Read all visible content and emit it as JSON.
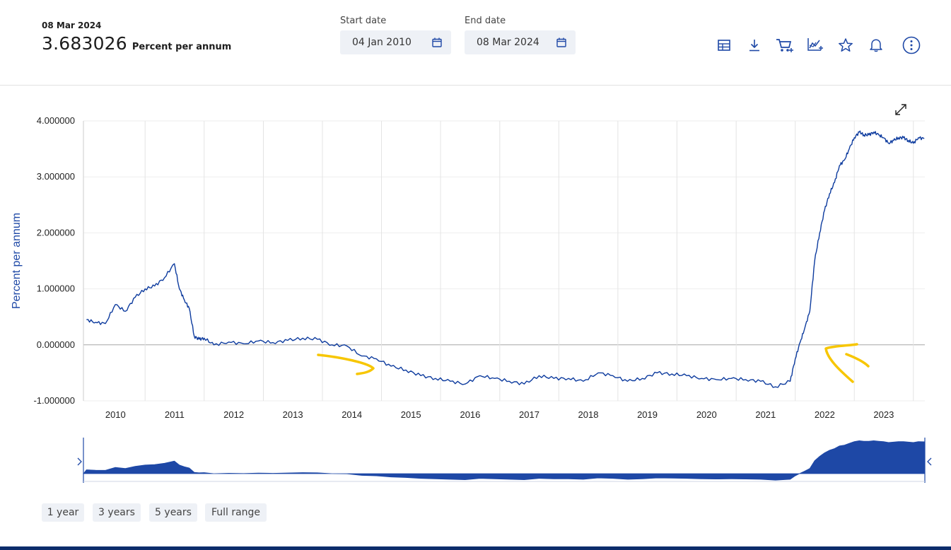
{
  "header": {
    "current_date": "08 Mar 2024",
    "current_value": "3.683026",
    "current_unit": "Percent per annum",
    "start": {
      "label": "Start date",
      "value": "04 Jan 2010"
    },
    "end": {
      "label": "End date",
      "value": "08 Mar 2024"
    }
  },
  "toolbar": {
    "icons": [
      "table-icon",
      "download-icon",
      "cart-add-icon",
      "chart-compare-icon",
      "star-icon",
      "bell-icon",
      "more-options-icon"
    ]
  },
  "range_buttons": [
    "1 year",
    "3 years",
    "5 years",
    "Full range"
  ],
  "colors": {
    "line": "#0d3b9e",
    "navigator_fill": "#1e48a6",
    "annotation": "#f7c600",
    "accent": "#0b2c6b"
  },
  "chart_data": {
    "type": "line",
    "ylabel": "Percent per annum",
    "ylim": [
      -1.0,
      4.0
    ],
    "y_ticks": [
      "4.000000",
      "3.000000",
      "2.000000",
      "1.000000",
      "0.000000",
      "-1.000000"
    ],
    "x_tick_labels": [
      "2010",
      "2011",
      "2012",
      "2013",
      "2014",
      "2015",
      "2016",
      "2017",
      "2018",
      "2019",
      "2020",
      "2021",
      "2022",
      "2023"
    ],
    "grid": true,
    "legend": "none",
    "series": [
      {
        "x": [
          "2010-01-04",
          "2010-03-01",
          "2010-05-01",
          "2010-07-01",
          "2010-09-01",
          "2010-11-01",
          "2011-01-01",
          "2011-03-01",
          "2011-05-01",
          "2011-07-01",
          "2011-08-01",
          "2011-09-01",
          "2011-10-01",
          "2011-11-01",
          "2011-12-01",
          "2012-01-01",
          "2012-03-01",
          "2012-06-01",
          "2012-09-01",
          "2012-12-01",
          "2013-03-01",
          "2013-06-01",
          "2013-09-01",
          "2013-12-01",
          "2014-03-01",
          "2014-06-01",
          "2014-09-01",
          "2014-12-01",
          "2015-03-01",
          "2015-06-01",
          "2015-09-01",
          "2015-12-01",
          "2016-03-01",
          "2016-06-01",
          "2016-09-01",
          "2016-12-01",
          "2017-03-01",
          "2017-06-01",
          "2017-09-01",
          "2017-12-01",
          "2018-03-01",
          "2018-06-01",
          "2018-09-01",
          "2018-12-01",
          "2019-03-01",
          "2019-06-01",
          "2019-09-01",
          "2019-12-01",
          "2020-03-01",
          "2020-06-01",
          "2020-09-01",
          "2020-12-01",
          "2021-03-01",
          "2021-06-01",
          "2021-09-01",
          "2021-12-01",
          "2022-01-01",
          "2022-02-01",
          "2022-03-01",
          "2022-04-01",
          "2022-05-01",
          "2022-06-01",
          "2022-07-01",
          "2022-08-01",
          "2022-09-01",
          "2022-10-01",
          "2022-11-01",
          "2022-12-01",
          "2023-01-01",
          "2023-02-01",
          "2023-03-01",
          "2023-04-01",
          "2023-05-01",
          "2023-06-01",
          "2023-07-01",
          "2023-08-01",
          "2023-09-01",
          "2023-10-01",
          "2023-11-01",
          "2023-12-01",
          "2024-01-01",
          "2024-02-01",
          "2024-03-08"
        ],
        "values": [
          0.45,
          0.4,
          0.38,
          0.72,
          0.6,
          0.85,
          1.0,
          1.05,
          1.2,
          1.45,
          1.0,
          0.8,
          0.65,
          0.15,
          0.1,
          0.12,
          0.0,
          0.05,
          0.02,
          0.07,
          0.04,
          0.08,
          0.12,
          0.1,
          0.0,
          -0.02,
          -0.2,
          -0.25,
          -0.38,
          -0.45,
          -0.55,
          -0.6,
          -0.65,
          -0.7,
          -0.55,
          -0.6,
          -0.65,
          -0.7,
          -0.55,
          -0.6,
          -0.6,
          -0.65,
          -0.5,
          -0.55,
          -0.65,
          -0.6,
          -0.5,
          -0.52,
          -0.55,
          -0.6,
          -0.62,
          -0.6,
          -0.62,
          -0.65,
          -0.75,
          -0.65,
          -0.25,
          0.05,
          0.3,
          0.6,
          1.5,
          2.0,
          2.4,
          2.7,
          2.9,
          3.2,
          3.3,
          3.5,
          3.7,
          3.8,
          3.75,
          3.75,
          3.8,
          3.75,
          3.7,
          3.6,
          3.65,
          3.7,
          3.7,
          3.65,
          3.6,
          3.7,
          3.683026
        ]
      }
    ]
  }
}
